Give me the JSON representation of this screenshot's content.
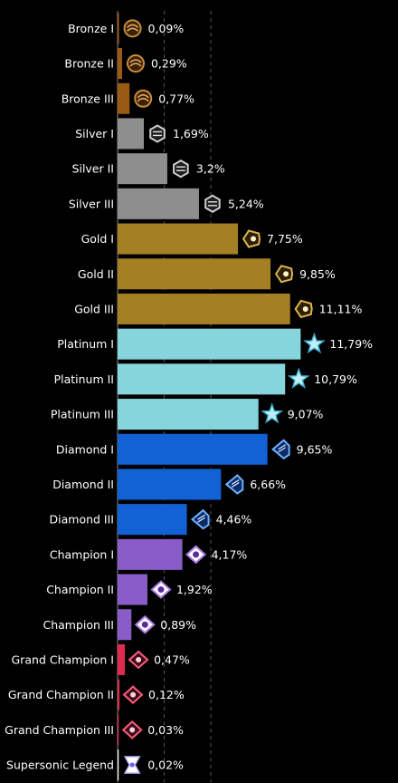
{
  "chart_data": {
    "type": "bar",
    "orientation": "horizontal",
    "title": "",
    "xlabel": "",
    "ylabel": "",
    "xlim": [
      0,
      12
    ],
    "guide_lines_at": [
      3,
      6
    ],
    "grid": false,
    "legend": "none",
    "categories": [
      "Bronze I",
      "Bronze II",
      "Bronze III",
      "Silver I",
      "Silver II",
      "Silver III",
      "Gold I",
      "Gold II",
      "Gold III",
      "Platinum I",
      "Platinum II",
      "Platinum III",
      "Diamond I",
      "Diamond II",
      "Diamond III",
      "Champion I",
      "Champion II",
      "Champion III",
      "Grand Champion I",
      "Grand Champion II",
      "Grand Champion III",
      "Supersonic Legend"
    ],
    "values": [
      0.09,
      0.29,
      0.77,
      1.69,
      3.2,
      5.24,
      7.75,
      9.85,
      11.11,
      11.79,
      10.79,
      9.07,
      9.65,
      6.66,
      4.46,
      4.17,
      1.92,
      0.89,
      0.47,
      0.12,
      0.03,
      0.02
    ],
    "value_labels": [
      "0,09%",
      "0,29%",
      "0,77%",
      "1,69%",
      "3,2%",
      "5,24%",
      "7,75%",
      "9,85%",
      "11,11%",
      "11,79%",
      "10,79%",
      "9,07%",
      "9,65%",
      "6,66%",
      "4,46%",
      "4,17%",
      "1,92%",
      "0,89%",
      "0,47%",
      "0,12%",
      "0,03%",
      "0,02%"
    ],
    "tier_colors": {
      "bronze": "#9a5a14",
      "silver": "#8e8e8e",
      "gold": "#a57f24",
      "platinum": "#86d4dc",
      "diamond": "#1262d6",
      "champion": "#8a5cc8",
      "grand_champion": "#e02a4e",
      "supersonic_legend": "#ffffff"
    },
    "icons": [
      "bronze-rank-icon",
      "bronze-rank-icon",
      "bronze-rank-icon",
      "silver-rank-icon",
      "silver-rank-icon",
      "silver-rank-icon",
      "gold-rank-icon",
      "gold-rank-icon",
      "gold-rank-icon",
      "platinum-rank-icon",
      "platinum-rank-icon",
      "platinum-rank-icon",
      "diamond-rank-icon",
      "diamond-rank-icon",
      "diamond-rank-icon",
      "champion-rank-icon",
      "champion-rank-icon",
      "champion-rank-icon",
      "grand-champion-rank-icon",
      "grand-champion-rank-icon",
      "grand-champion-rank-icon",
      "supersonic-legend-rank-icon"
    ]
  }
}
